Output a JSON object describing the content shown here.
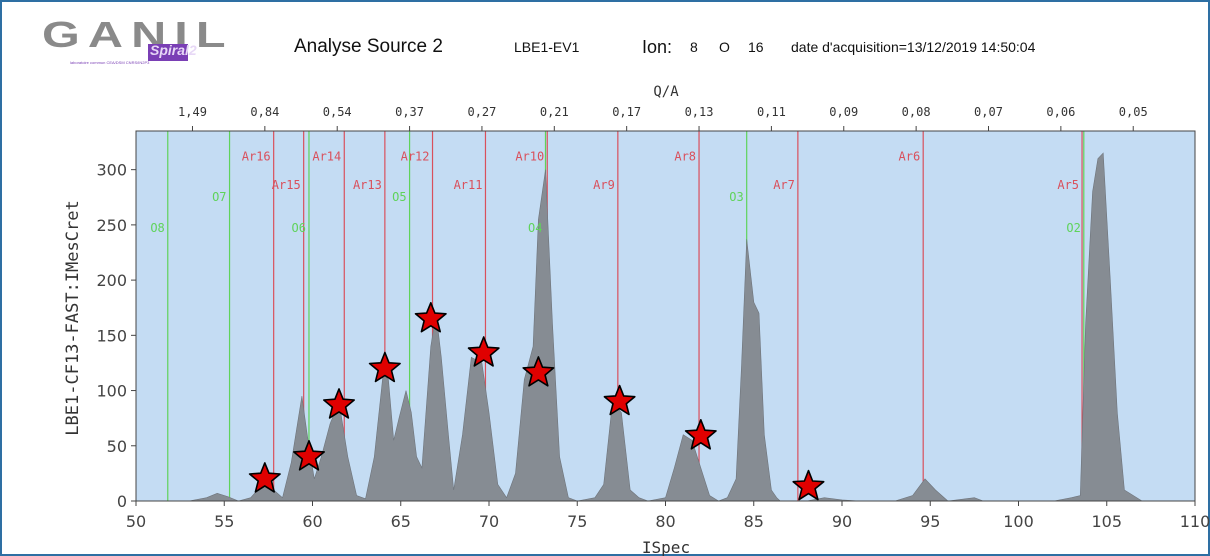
{
  "header": {
    "logo_text": "GANIL",
    "logo_sub": "Spiral2",
    "logo_tagline": "laboratoire commun CEA/DSM CNRS/IN2P3",
    "title": "Analyse Source 2",
    "source": "LBE1-EV1",
    "ion_label": "Ion:",
    "ion_charge": "8",
    "ion_element": "O",
    "ion_mass": "16",
    "acquisition": "date d'acquisition=13/12/2019 14:50:04"
  },
  "colors": {
    "plot_background": "#c4dcf3",
    "spectrum_fill": "#868c93",
    "argon_lines": "#d9505c",
    "oxygen_lines": "#5fd35a",
    "star_fill": "#e00000",
    "frame": "#2e6fa3"
  },
  "chart_data": {
    "type": "area",
    "title": "",
    "xlabel": "ISpec",
    "ylabel": "LBE1-CF13-FAST:IMesCret",
    "top_axis_label": "Q/A",
    "xlim": [
      50,
      110
    ],
    "ylim": [
      0,
      335
    ],
    "grid": false,
    "x_ticks": [
      50,
      55,
      60,
      65,
      70,
      75,
      80,
      85,
      90,
      95,
      100,
      105,
      110
    ],
    "y_ticks": [
      0,
      50,
      100,
      150,
      200,
      250,
      300
    ],
    "top_ticks": [
      {
        "label": "1,49",
        "x": 53.2
      },
      {
        "label": "0,84",
        "x": 57.3
      },
      {
        "label": "0,54",
        "x": 61.4
      },
      {
        "label": "0,37",
        "x": 65.5
      },
      {
        "label": "0,27",
        "x": 69.6
      },
      {
        "label": "0,21",
        "x": 73.7
      },
      {
        "label": "0,17",
        "x": 77.8
      },
      {
        "label": "0,13",
        "x": 81.9
      },
      {
        "label": "0,11",
        "x": 86.0
      },
      {
        "label": "0,09",
        "x": 90.1
      },
      {
        "label": "0,08",
        "x": 94.2
      },
      {
        "label": "0,07",
        "x": 98.3
      },
      {
        "label": "0,06",
        "x": 102.4
      },
      {
        "label": "0,05",
        "x": 106.5
      }
    ],
    "spectrum": {
      "x": [
        50,
        51,
        52,
        53,
        54,
        54.6,
        55.2,
        55.8,
        56.5,
        57,
        57.3,
        57.8,
        58.3,
        58.8,
        59.4,
        59.7,
        60.1,
        60.5,
        61,
        61.5,
        62,
        62.5,
        63,
        63.5,
        64,
        64.3,
        64.6,
        64.9,
        65.3,
        65.6,
        65.9,
        66.2,
        66.7,
        67,
        67.3,
        67.7,
        68,
        68.5,
        69,
        69.6,
        70,
        70.5,
        71,
        71.5,
        72,
        72.5,
        72.8,
        73.2,
        73.4,
        73.6,
        74,
        74.5,
        75,
        76,
        76.5,
        77,
        77.5,
        78,
        78.5,
        79,
        80,
        80.5,
        81,
        81.5,
        82,
        82.5,
        83,
        83.5,
        84,
        84.3,
        84.6,
        85,
        85.3,
        85.6,
        86,
        86.3,
        86.5,
        87,
        88,
        89,
        90,
        91,
        92,
        93,
        94,
        94.7,
        95.3,
        96,
        97,
        97.5,
        98,
        99,
        100,
        101,
        102,
        103,
        103.5,
        103.8,
        104.2,
        104.5,
        104.8,
        105.2,
        105.6,
        106,
        107,
        108,
        109,
        110
      ],
      "y": [
        0,
        0,
        0,
        0,
        3,
        7,
        4,
        0,
        3,
        12,
        22,
        10,
        3,
        35,
        95,
        60,
        20,
        40,
        70,
        90,
        40,
        5,
        2,
        40,
        115,
        110,
        55,
        75,
        100,
        80,
        40,
        30,
        140,
        170,
        130,
        60,
        10,
        60,
        130,
        125,
        80,
        15,
        3,
        25,
        110,
        140,
        255,
        300,
        230,
        160,
        40,
        3,
        0,
        3,
        15,
        90,
        80,
        10,
        3,
        0,
        3,
        30,
        60,
        55,
        30,
        5,
        0,
        3,
        20,
        120,
        237,
        180,
        170,
        60,
        10,
        3,
        0,
        0,
        0,
        3,
        1,
        0,
        0,
        0,
        5,
        20,
        10,
        0,
        2,
        3,
        0,
        0,
        0,
        0,
        0,
        3,
        5,
        160,
        280,
        310,
        315,
        200,
        80,
        10,
        0,
        0,
        0,
        0
      ]
    },
    "argon_lines": [
      {
        "label": "Ar16",
        "x": 57.8,
        "label_y": 313
      },
      {
        "label": "Ar15",
        "x": 59.5,
        "label_y": 287
      },
      {
        "label": "Ar14",
        "x": 61.8,
        "label_y": 313
      },
      {
        "label": "Ar13",
        "x": 64.1,
        "label_y": 287
      },
      {
        "label": "Ar12",
        "x": 66.8,
        "label_y": 313
      },
      {
        "label": "Ar11",
        "x": 69.8,
        "label_y": 287
      },
      {
        "label": "Ar10",
        "x": 73.3,
        "label_y": 313
      },
      {
        "label": "Ar9",
        "x": 77.3,
        "label_y": 287
      },
      {
        "label": "Ar8",
        "x": 81.9,
        "label_y": 313
      },
      {
        "label": "Ar7",
        "x": 87.5,
        "label_y": 287
      },
      {
        "label": "Ar6",
        "x": 94.6,
        "label_y": 313
      },
      {
        "label": "Ar5",
        "x": 103.6,
        "label_y": 287
      }
    ],
    "oxygen_lines": [
      {
        "label": "O8",
        "x": 51.8,
        "label_y": 248
      },
      {
        "label": "O7",
        "x": 55.3,
        "label_y": 276
      },
      {
        "label": "O6",
        "x": 59.8,
        "label_y": 248
      },
      {
        "label": "O5",
        "x": 65.5,
        "label_y": 276
      },
      {
        "label": "O4",
        "x": 73.2,
        "label_y": 248
      },
      {
        "label": "O3",
        "x": 84.6,
        "label_y": 276
      },
      {
        "label": "O2",
        "x": 103.7,
        "label_y": 248
      }
    ],
    "stars": [
      {
        "x": 57.3,
        "y": 20
      },
      {
        "x": 59.8,
        "y": 40
      },
      {
        "x": 61.5,
        "y": 87
      },
      {
        "x": 64.1,
        "y": 120
      },
      {
        "x": 66.7,
        "y": 165
      },
      {
        "x": 69.7,
        "y": 134
      },
      {
        "x": 72.8,
        "y": 116
      },
      {
        "x": 77.4,
        "y": 90
      },
      {
        "x": 82.0,
        "y": 59
      },
      {
        "x": 88.1,
        "y": 13
      }
    ]
  }
}
